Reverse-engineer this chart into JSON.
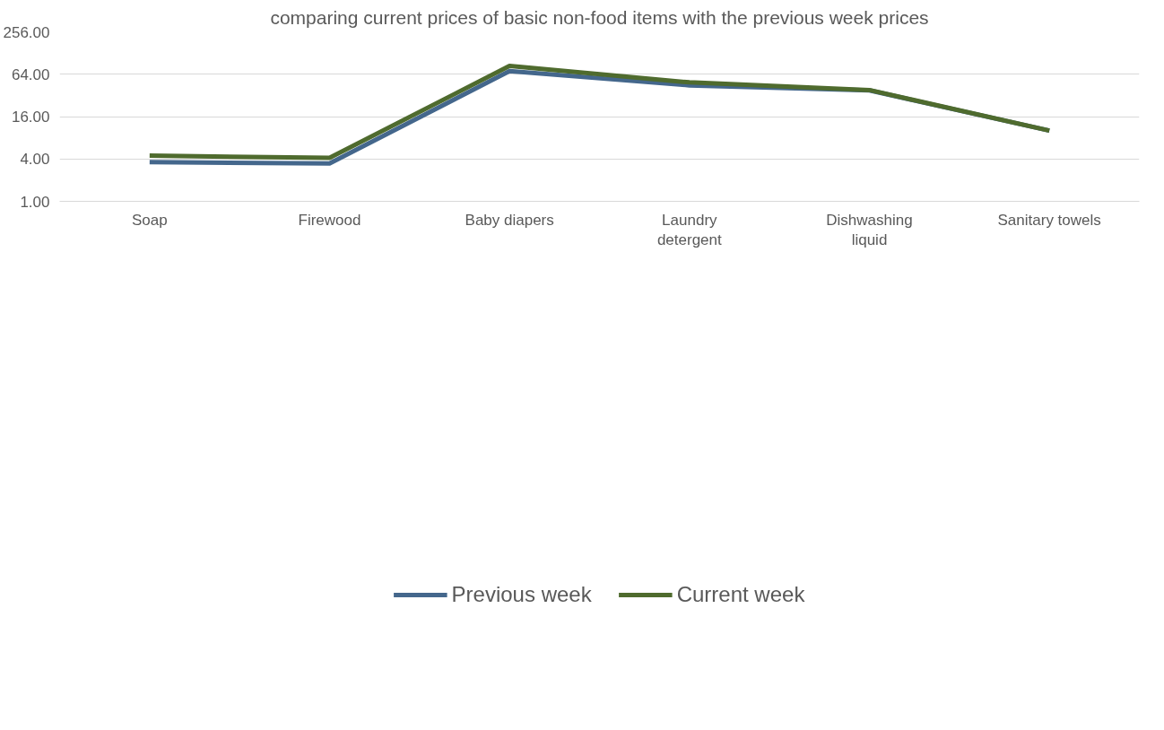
{
  "chart_data": {
    "type": "line",
    "title": "comparing current prices of basic non-food items with the previous week prices",
    "categories": [
      "Soap",
      "Firewood",
      "Baby diapers",
      "Laundry detergent",
      "Dishwashing liquid",
      "Sanitary towels"
    ],
    "series": [
      {
        "name": "Previous week",
        "color": "#44678c",
        "values": [
          3.6,
          3.45,
          71,
          44.5,
          37.7,
          10.1
        ]
      },
      {
        "name": "Current week",
        "color": "#4f6b2e",
        "values": [
          4.45,
          4.15,
          84,
          49,
          38.1,
          10.1
        ]
      }
    ],
    "log": true,
    "ylim": [
      1,
      256
    ],
    "yticks": [
      {
        "value": 1,
        "label": "1.00"
      },
      {
        "value": 4,
        "label": "4.00"
      },
      {
        "value": 16,
        "label": "16.00"
      },
      {
        "value": 64,
        "label": "64.00"
      },
      {
        "value": 256,
        "label": "256.00"
      }
    ],
    "grid": "y",
    "legend": "bottom",
    "line_style": "solid",
    "marker": "none"
  }
}
